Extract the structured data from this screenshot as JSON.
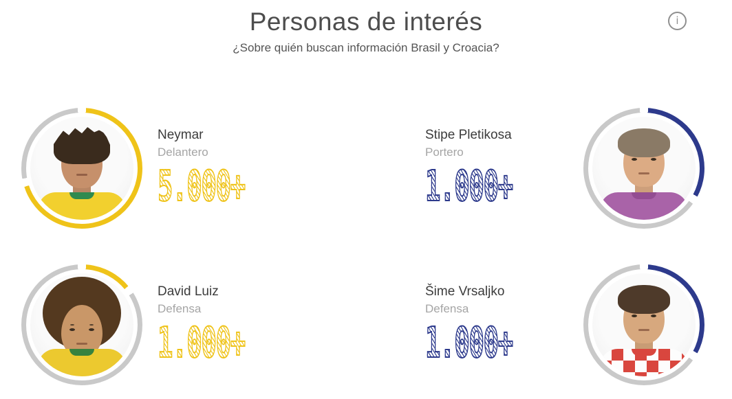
{
  "header": {
    "title": "Personas de interés",
    "subtitle": "¿Sobre quién buscan información Brasil y Croacia?",
    "info_icon": {
      "name": "info-icon",
      "glyph": "i"
    }
  },
  "colors": {
    "brazil_accent": "#EFC319",
    "croatia_accent": "#2D3A8C",
    "ring_gray": "#C9C9C9",
    "title_text": "#4D4D4D",
    "name_text": "#3C3C3C",
    "role_text": "#A5A5A5"
  },
  "players": [
    {
      "name": "Neymar",
      "role": "Delantero",
      "value": "5.000+",
      "team": "brazil",
      "accent": "#EFC319",
      "photo_side": "left",
      "ring": {
        "start_deg": 4,
        "end_deg": 252
      },
      "avatar": {
        "style": "spiky",
        "hair": "#3a2b1d",
        "skin": "#c6906b",
        "jersey": "#f2d02e",
        "collar": "#2f8a4f"
      }
    },
    {
      "name": "Stipe Pletikosa",
      "role": "Portero",
      "value": "1.000+",
      "team": "croatia",
      "accent": "#2D3A8C",
      "photo_side": "right",
      "ring": {
        "start_deg": 4,
        "end_deg": 118
      },
      "avatar": {
        "style": "short",
        "hair": "#8a7a66",
        "skin": "#dcab84",
        "jersey": "#a963a8",
        "collar": "#934d92"
      }
    },
    {
      "name": "David Luiz",
      "role": "Defensa",
      "value": "1.000+",
      "team": "brazil",
      "accent": "#EFC319",
      "photo_side": "left",
      "ring": {
        "start_deg": 4,
        "end_deg": 50
      },
      "avatar": {
        "style": "afro",
        "hair": "#54391f",
        "skin": "#c99768",
        "jersey": "#ecc92f",
        "collar": "#37823f"
      }
    },
    {
      "name": "Šime Vrsaljko",
      "role": "Defensa",
      "value": "1.000+",
      "team": "croatia",
      "accent": "#2D3A8C",
      "photo_side": "right",
      "ring": {
        "start_deg": 4,
        "end_deg": 118
      },
      "avatar": {
        "style": "short",
        "hair": "#4e3a2a",
        "skin": "#d7a87e",
        "jersey": "repeating-conic-gradient(#d9463e 0% 25%, #fdfdfd 0% 50%) 0 0 / 34px 34px",
        "collar": "#d9463e"
      }
    }
  ]
}
